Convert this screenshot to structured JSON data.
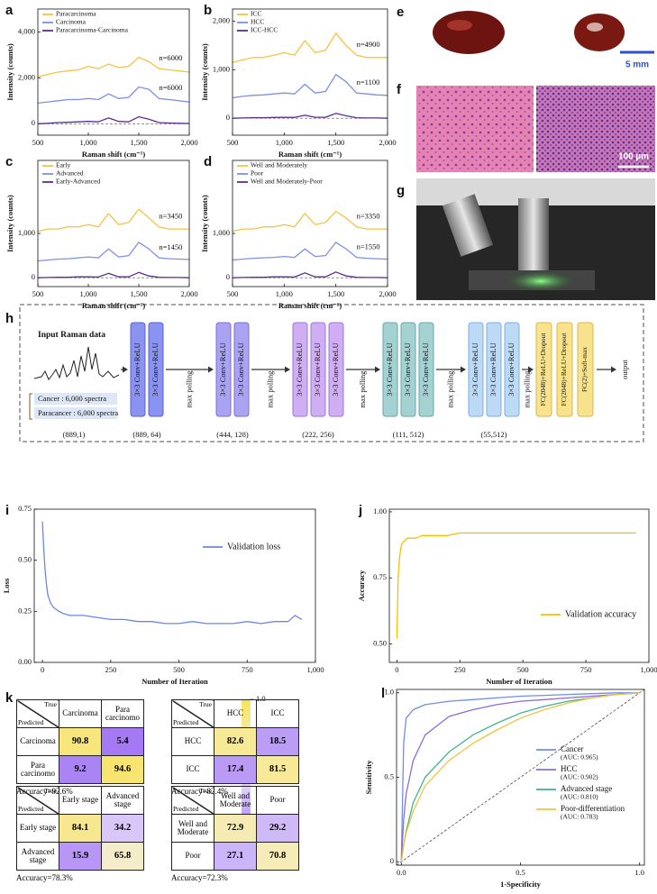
{
  "chart_data": [
    {
      "type": "line",
      "label": "a",
      "x_label": "Raman shift (cm⁻¹)",
      "y_label": "Intensity (counts)",
      "x": [
        500,
        600,
        700,
        800,
        900,
        1000,
        1100,
        1200,
        1300,
        1400,
        1500,
        1600,
        1700,
        1800,
        1900,
        2000
      ],
      "xlim": [
        500,
        2000
      ],
      "xticks": [
        500,
        {
          "value": 1000,
          "label": "1,000"
        },
        {
          "value": 1500,
          "label": "1,500"
        },
        {
          "value": 2000,
          "label": "2,000"
        }
      ],
      "ylim": [
        -500,
        5000
      ],
      "yticks": [
        0,
        {
          "value": 2000,
          "label": "2,000"
        },
        {
          "value": 4000,
          "label": "4,000"
        }
      ],
      "legend": "upper left",
      "zero_line": true,
      "series": [
        {
          "name": "Paracarcinoma",
          "color": "#f5c342",
          "values": [
            2050,
            2150,
            2250,
            2300,
            2350,
            2500,
            2400,
            2600,
            2450,
            2500,
            2900,
            2700,
            2400,
            2350,
            2300,
            2250
          ]
        },
        {
          "name": "Carcinoma",
          "color": "#7d8fe8",
          "values": [
            900,
            950,
            1000,
            1050,
            1050,
            1100,
            1050,
            1300,
            1100,
            1150,
            1600,
            1500,
            1100,
            1050,
            1000,
            950
          ]
        },
        {
          "name": "Paracarcinoma-Carcinoma",
          "color": "#5b2c8e",
          "values": [
            0,
            20,
            50,
            60,
            80,
            100,
            80,
            250,
            100,
            80,
            300,
            200,
            50,
            30,
            20,
            10
          ]
        }
      ],
      "annotations": [
        "n=6000",
        "n=6000"
      ]
    },
    {
      "type": "line",
      "label": "b",
      "x_label": "Raman shift (cm⁻¹)",
      "y_label": "Intensity (counts)",
      "x": [
        500,
        600,
        700,
        800,
        900,
        1000,
        1100,
        1200,
        1300,
        1400,
        1500,
        1600,
        1700,
        1800,
        1900,
        2000
      ],
      "xlim": [
        500,
        2000
      ],
      "xticks": [
        500,
        {
          "value": 1000,
          "label": "1,000"
        },
        {
          "value": 1500,
          "label": "1,500"
        },
        {
          "value": 2000,
          "label": "2,000"
        }
      ],
      "ylim": [
        -350,
        2250
      ],
      "yticks": [
        0,
        {
          "value": 1000,
          "label": "1,000"
        },
        {
          "value": 2000,
          "label": "2,000"
        }
      ],
      "legend": "upper left",
      "zero_line": true,
      "series": [
        {
          "name": "ICC",
          "color": "#f5c342",
          "values": [
            1150,
            1200,
            1250,
            1250,
            1300,
            1350,
            1300,
            1600,
            1350,
            1400,
            1750,
            1500,
            1300,
            1250,
            1250,
            1250
          ]
        },
        {
          "name": "HCC",
          "color": "#7d8fe8",
          "values": [
            420,
            450,
            470,
            480,
            500,
            520,
            500,
            700,
            520,
            550,
            900,
            750,
            520,
            500,
            480,
            470
          ]
        },
        {
          "name": "ICC-HCC",
          "color": "#5b2c8e",
          "values": [
            0,
            5,
            10,
            10,
            15,
            20,
            15,
            60,
            20,
            20,
            100,
            50,
            10,
            5,
            5,
            0
          ]
        }
      ],
      "annotations": [
        "n=4900",
        "n=1100"
      ]
    },
    {
      "type": "line",
      "label": "c",
      "x_label": "Raman shift (cm⁻¹)",
      "y_label": "Intensity (counts)",
      "x": [
        500,
        600,
        700,
        800,
        900,
        1000,
        1100,
        1200,
        1300,
        1400,
        1500,
        1600,
        1700,
        1800,
        1900,
        2000
      ],
      "xlim": [
        500,
        2000
      ],
      "xticks": [
        500,
        {
          "value": 1000,
          "label": "1,000"
        },
        {
          "value": 1500,
          "label": "1,500"
        },
        {
          "value": 2000,
          "label": "2,000"
        }
      ],
      "ylim": [
        -200,
        2650
      ],
      "yticks": [
        0,
        {
          "value": 1000,
          "label": "1,000"
        }
      ],
      "legend": "upper left",
      "zero_line": true,
      "series": [
        {
          "name": "Early",
          "color": "#f5c342",
          "values": [
            1050,
            1100,
            1100,
            1150,
            1150,
            1200,
            1150,
            1450,
            1200,
            1250,
            1550,
            1350,
            1150,
            1100,
            1100,
            1100
          ]
        },
        {
          "name": "Advanced",
          "color": "#7d8fe8",
          "values": [
            380,
            400,
            420,
            430,
            450,
            470,
            450,
            650,
            470,
            500,
            800,
            650,
            450,
            430,
            420,
            410
          ]
        },
        {
          "name": "Early-Advanced",
          "color": "#5b2c8e",
          "values": [
            0,
            5,
            10,
            10,
            20,
            20,
            15,
            100,
            20,
            20,
            120,
            40,
            10,
            5,
            5,
            0
          ]
        }
      ],
      "annotations": [
        "n=3450",
        "n=1450"
      ]
    },
    {
      "type": "line",
      "label": "d",
      "x_label": "Raman shift (cm⁻¹)",
      "y_label": "Intensity (counts)",
      "x": [
        500,
        600,
        700,
        800,
        900,
        1000,
        1100,
        1200,
        1300,
        1400,
        1500,
        1600,
        1700,
        1800,
        1900,
        2000
      ],
      "xlim": [
        500,
        2000
      ],
      "xticks": [
        500,
        {
          "value": 1000,
          "label": "1,000"
        },
        {
          "value": 1500,
          "label": "1,500"
        },
        {
          "value": 2000,
          "label": "2,000"
        }
      ],
      "ylim": [
        -200,
        2650
      ],
      "yticks": [
        0,
        {
          "value": 1000,
          "label": "1,000"
        }
      ],
      "legend": "upper left",
      "zero_line": true,
      "series": [
        {
          "name": "Well and Moderately",
          "color": "#f5c342",
          "values": [
            1050,
            1100,
            1100,
            1150,
            1150,
            1200,
            1150,
            1450,
            1200,
            1250,
            1500,
            1350,
            1150,
            1100,
            1100,
            1100
          ]
        },
        {
          "name": "Poor",
          "color": "#7d8fe8",
          "values": [
            400,
            420,
            440,
            450,
            460,
            480,
            460,
            650,
            480,
            500,
            800,
            650,
            460,
            440,
            430,
            420
          ]
        },
        {
          "name": "Well and Moderately-Poor",
          "color": "#5b2c8e",
          "values": [
            0,
            5,
            10,
            10,
            20,
            20,
            15,
            110,
            20,
            20,
            130,
            40,
            10,
            5,
            5,
            0
          ]
        }
      ],
      "annotations": [
        "n=3350",
        "n=1550"
      ]
    },
    {
      "type": "line",
      "label": "i",
      "x_label": "Number of Iteration",
      "y_label": "Loss",
      "x": [
        0,
        5,
        10,
        15,
        20,
        30,
        40,
        50,
        60,
        75,
        100,
        125,
        150,
        200,
        250,
        300,
        350,
        400,
        450,
        500,
        550,
        600,
        650,
        700,
        750,
        800,
        850,
        900,
        925,
        950
      ],
      "xlim": [
        -30,
        1000
      ],
      "xticks": [
        0,
        250,
        500,
        750,
        {
          "value": 1000,
          "label": "1,000"
        }
      ],
      "ylim": [
        0,
        0.75
      ],
      "yticks": [
        {
          "value": 0,
          "label": "0.00"
        },
        0.25,
        {
          "value": 0.5,
          "label": "0.50"
        },
        0.75
      ],
      "legend": "upper right",
      "series": [
        {
          "name": "Validation loss",
          "color": "#6b86e6",
          "values": [
            0.69,
            0.55,
            0.45,
            0.38,
            0.33,
            0.29,
            0.27,
            0.26,
            0.25,
            0.24,
            0.23,
            0.23,
            0.23,
            0.22,
            0.21,
            0.21,
            0.2,
            0.2,
            0.19,
            0.19,
            0.2,
            0.19,
            0.19,
            0.19,
            0.2,
            0.19,
            0.2,
            0.2,
            0.23,
            0.21
          ]
        }
      ]
    },
    {
      "type": "line",
      "label": "j",
      "x_label": "Number of Iteration",
      "y_label": "Accuracy",
      "x": [
        0,
        5,
        10,
        15,
        20,
        30,
        40,
        50,
        60,
        75,
        100,
        125,
        150,
        200,
        250,
        300,
        350,
        400,
        450,
        500,
        550,
        600,
        650,
        700,
        750,
        800,
        850,
        900,
        925,
        950
      ],
      "xlim": [
        -30,
        1000
      ],
      "xticks": [
        0,
        250,
        500,
        750,
        {
          "value": 1000,
          "label": "1,000"
        }
      ],
      "ylim": [
        0.43,
        1.01
      ],
      "yticks": [
        {
          "value": 0.5,
          "label": "0.50"
        },
        0.75,
        {
          "value": 1,
          "label": "1.00"
        }
      ],
      "legend": "lower right",
      "series": [
        {
          "name": "Validation accuracy",
          "color": "#f5c000",
          "values": [
            0.52,
            0.75,
            0.82,
            0.86,
            0.88,
            0.89,
            0.9,
            0.9,
            0.9,
            0.9,
            0.91,
            0.91,
            0.91,
            0.91,
            0.92,
            0.92,
            0.92,
            0.92,
            0.92,
            0.92,
            0.92,
            0.92,
            0.92,
            0.92,
            0.92,
            0.92,
            0.92,
            0.92,
            0.92,
            0.92
          ]
        }
      ]
    },
    {
      "type": "line",
      "label": "l",
      "x_label": "1-Specificity",
      "y_label": "Sensitivity",
      "x": [
        0,
        0.01,
        0.02,
        0.05,
        0.1,
        0.2,
        0.3,
        0.4,
        0.5,
        0.6,
        0.7,
        0.8,
        0.9,
        1
      ],
      "xlim": [
        -0.02,
        1.02
      ],
      "xticks": [
        {
          "value": 0,
          "label": "0.0"
        },
        0.5,
        {
          "value": 1,
          "label": "1.0"
        }
      ],
      "ylim": [
        -0.02,
        1.02
      ],
      "yticks": [
        0,
        0.5,
        {
          "value": 1,
          "label": "1.0"
        }
      ],
      "legend": "lower right",
      "diagonal": true,
      "series": [
        {
          "name": "Cancer",
          "auc_label": "(AUC: 0.965)",
          "color": "#6f8ee8",
          "values": [
            0,
            0.7,
            0.85,
            0.9,
            0.93,
            0.95,
            0.96,
            0.97,
            0.98,
            0.985,
            0.99,
            0.995,
            1,
            1
          ]
        },
        {
          "name": "HCC",
          "auc_label": "(AUC: 0.902)",
          "color": "#8e6ad8",
          "values": [
            0,
            0.25,
            0.4,
            0.6,
            0.75,
            0.86,
            0.9,
            0.93,
            0.95,
            0.96,
            0.97,
            0.98,
            0.99,
            1
          ]
        },
        {
          "name": "Advanced stage",
          "auc_label": "(AUC: 0.810)",
          "color": "#3fb58f",
          "values": [
            0,
            0.1,
            0.18,
            0.35,
            0.5,
            0.65,
            0.75,
            0.82,
            0.88,
            0.92,
            0.95,
            0.97,
            0.99,
            1
          ]
        },
        {
          "name": "Poor-differentiation",
          "auc_label": "(AUC: 0.783)",
          "color": "#f5c242",
          "values": [
            0,
            0.1,
            0.17,
            0.3,
            0.45,
            0.6,
            0.7,
            0.78,
            0.85,
            0.9,
            0.94,
            0.97,
            0.99,
            1
          ]
        }
      ]
    }
  ],
  "figure": {
    "labels": {
      "e": "e",
      "f": "f",
      "g": "g",
      "h": "h",
      "k": "k"
    },
    "scale_e": "5 mm",
    "scale_f": "100 µm",
    "network": {
      "input_title": "Input Raman data",
      "input_items": [
        "Cancer : 6,000 spectra",
        "Paracancer : 6,000 spectra"
      ],
      "input_shape": "(889,1)",
      "conv_blocks": [
        {
          "layers": [
            "3×3 Conv+ReLU",
            "3×3 Conv+ReLU"
          ],
          "shape": "(889, 64)",
          "color": "#8b93f0",
          "border": "#5a5fd6"
        },
        {
          "layers": [
            "3×3 Conv+ReLU",
            "3×3 Conv+ReLU"
          ],
          "shape": "(444, 128)",
          "color": "#aaa3f2",
          "border": "#7a6fd8"
        },
        {
          "layers": [
            "3×3 Conv+ReLU",
            "3×3 Conv+ReLU",
            "3×3 Conv+ReLU"
          ],
          "shape": "(222, 256)",
          "color": "#cfaef3",
          "border": "#9a78d8"
        },
        {
          "layers": [
            "3×3 Conv+ReLU",
            "3×3 Conv+ReLU",
            "3×3 Conv+ReLU"
          ],
          "shape": "(111, 512)",
          "color": "#a4d2d2",
          "border": "#6aa6a6"
        },
        {
          "layers": [
            "3×3 Conv+ReLU",
            "3×3 Conv+ReLU",
            "3×3 Conv+ReLU"
          ],
          "shape": "(55,512)",
          "color": "#bcdaf6",
          "border": "#7eaee0"
        }
      ],
      "pool_labels": [
        "max polling",
        "max polling",
        "max polling",
        "max polling",
        "max polling"
      ],
      "fc_layers": [
        "FC(2048)+ReLU+Dropout",
        "FC(2048)+ReLU+Dropout",
        "FC(2)+Soft-max"
      ],
      "fc_color": "#f8e38c",
      "output": "output"
    },
    "confusion": {
      "colormap": [
        "#9b6bf2",
        "#f4f1fb",
        "#f8e45e"
      ],
      "colorbar_ticks": [
        0,
        0.5,
        {
          "value": 1,
          "label": "1.0"
        }
      ],
      "tables": [
        {
          "true_label": "True",
          "predicted_label": "Predicted",
          "columns": [
            "Carcinoma",
            "Para carcinomo"
          ],
          "rows": [
            "Carcinoma",
            "Para carcinomo"
          ],
          "values": [
            [
              90.8,
              5.4
            ],
            [
              9.2,
              94.6
            ]
          ],
          "accuracy": "Accuracy=92.6%"
        },
        {
          "true_label": "True",
          "predicted_label": "Predicted",
          "columns": [
            "HCC",
            "ICC"
          ],
          "rows": [
            "HCC",
            "ICC"
          ],
          "values": [
            [
              82.6,
              18.5
            ],
            [
              17.4,
              81.5
            ]
          ],
          "accuracy": "Accuracy=82.4%"
        },
        {
          "true_label": "True",
          "predicted_label": "Predicted",
          "columns": [
            "Early stage",
            "Advanced stage"
          ],
          "rows": [
            "Early stage",
            "Advanced stage"
          ],
          "values": [
            [
              84.1,
              34.2
            ],
            [
              15.9,
              65.8
            ]
          ],
          "accuracy": "Accuracy=78.3%"
        },
        {
          "true_label": "True",
          "predicted_label": "Predicted",
          "columns": [
            "Well and Moderate",
            "Poor"
          ],
          "rows": [
            "Well and Moderate",
            "Poor"
          ],
          "values": [
            [
              72.9,
              29.2
            ],
            [
              27.1,
              70.8
            ]
          ],
          "accuracy": "Accuracy=72.3%"
        }
      ]
    }
  }
}
